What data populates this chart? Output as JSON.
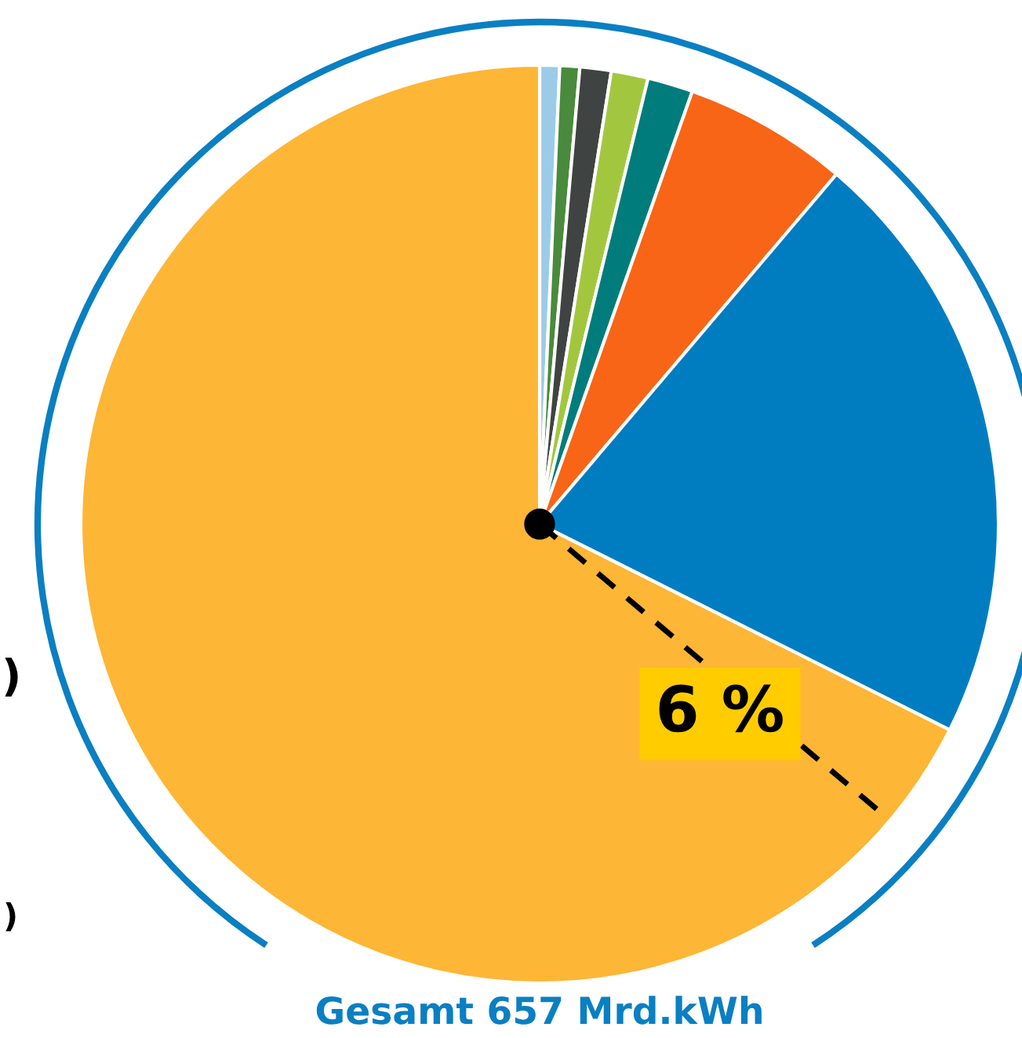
{
  "chart_data": {
    "type": "pie",
    "categories": [
      null,
      null,
      null,
      null,
      null,
      null,
      null,
      null
    ],
    "values": [
      0.7,
      0.7,
      1.1,
      1.3,
      1.6,
      5.8,
      21.2,
      67.6
    ],
    "colors": [
      "#9ccbe8",
      "#4a8a3c",
      "#3f4442",
      "#a2c73f",
      "#007c7c",
      "#f86516",
      "#007dc1",
      "#feb636"
    ],
    "annotations": [
      "6 %",
      "Gesamt 657 Mrd.kWh",
      ")",
      ")"
    ],
    "legend": false
  }
}
